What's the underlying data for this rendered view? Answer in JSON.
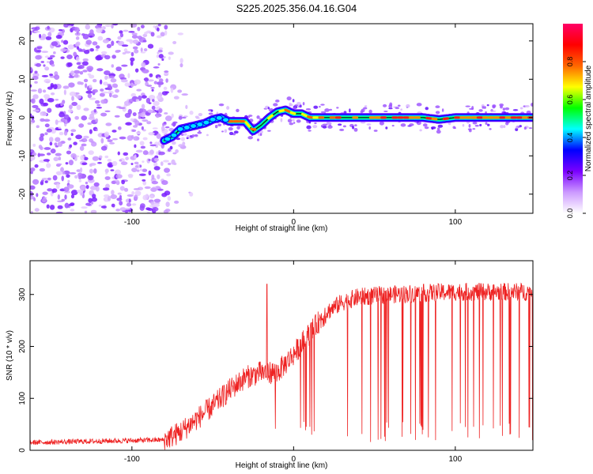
{
  "chart_data": [
    {
      "type": "heatmap",
      "title": "S225.2025.356.04.16.G04",
      "xlabel": "Height of straight line (km)",
      "ylabel": "Frequency (Hz)",
      "xlim": [
        -163,
        148
      ],
      "ylim": [
        -25,
        24.5
      ],
      "xticks": [
        -100,
        0,
        100
      ],
      "yticks": [
        -20,
        -10,
        0,
        10,
        20
      ],
      "colorbar": {
        "label": "Normalized spectral amplitude",
        "range": [
          0,
          1
        ],
        "ticks": [
          0.0,
          0.2,
          0.4,
          0.6,
          0.8
        ],
        "tick_labels": [
          "0.0",
          "0.2",
          "0.4",
          "0.6",
          "0.8"
        ],
        "stops": [
          "#ffffff",
          "#cc99ff",
          "#7a00ff",
          "#0000ff",
          "#00ffff",
          "#00ff00",
          "#ffff00",
          "#ff6600",
          "#ff0000",
          "#ff0066"
        ]
      },
      "ridge": {
        "x": [
          -80,
          -75,
          -70,
          -65,
          -60,
          -55,
          -50,
          -45,
          -40,
          -35,
          -30,
          -25,
          -20,
          -15,
          -10,
          -5,
          0,
          5,
          10,
          20,
          40,
          60,
          80,
          90,
          100,
          120,
          148
        ],
        "y": [
          -6,
          -5,
          -3,
          -2.5,
          -2,
          -1.5,
          -0.5,
          0,
          -1,
          -1,
          -1,
          -3.5,
          -2,
          0,
          1.5,
          2,
          1,
          1,
          0,
          0,
          0,
          0,
          0,
          -0.5,
          0,
          0,
          0
        ]
      }
    },
    {
      "type": "line",
      "xlabel": "Height of straight line (km)",
      "ylabel": "SNR (10 * v/v)",
      "xlim": [
        -163,
        148
      ],
      "ylim": [
        0,
        365
      ],
      "xticks": [
        -100,
        0,
        100
      ],
      "yticks": [
        0,
        100,
        200,
        300
      ],
      "color": "#ee2222",
      "trend": {
        "x": [
          -163,
          -80,
          -70,
          -60,
          -50,
          -40,
          -30,
          -20,
          -10,
          0,
          10,
          20,
          30,
          40,
          60,
          100,
          148
        ],
        "y": [
          15,
          20,
          35,
          60,
          85,
          115,
          140,
          150,
          150,
          185,
          225,
          265,
          285,
          295,
          300,
          305,
          305
        ]
      }
    }
  ]
}
